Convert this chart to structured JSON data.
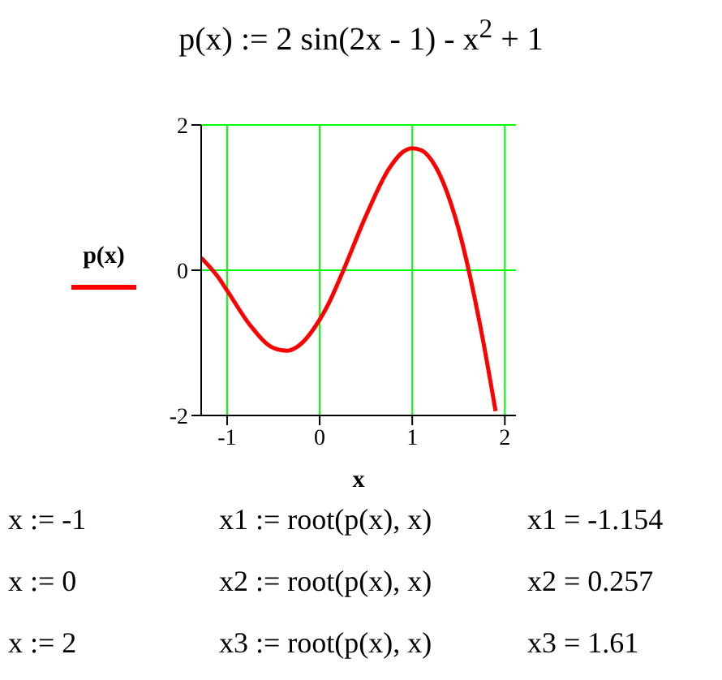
{
  "chart_data": {
    "type": "line",
    "title": "p(x) := 2 sin(2x - 1) - x$^{2}$ + 1",
    "xlabel": "x",
    "x": [
      -1.28,
      -1.1,
      -1,
      -0.75,
      -0.5,
      -0.35,
      -0.25,
      0,
      0.1,
      0.25,
      0.5,
      0.75,
      0.9,
      1,
      1.1,
      1.25,
      1.5,
      1.75,
      1.9
    ],
    "series": [
      {
        "name": "p(x)",
        "color": "#ff0000",
        "values": [
          0.17,
          -0.09,
          -0.28,
          -0.76,
          -1.07,
          -1.11,
          -1.06,
          -0.68,
          -0.45,
          -0.02,
          0.75,
          1.4,
          1.63,
          1.68,
          1.65,
          1.43,
          0.57,
          -0.87,
          -1.94
        ]
      }
    ],
    "xlim": [
      -1.28,
      2.12
    ],
    "xticks": [
      -1,
      0,
      1,
      2
    ],
    "ylim": [
      -2,
      2
    ],
    "yticks": [
      -2,
      0,
      2
    ],
    "grid": true,
    "legend": "left",
    "marker": "none",
    "line_style": "solid",
    "annotations": [
      "x := -1",
      "x1 := root(p(x), x)",
      "x1 = -1.154",
      "x := 0",
      "x2 := root(p(x), x)",
      "x2 = 0.257",
      "x := 2",
      "x3 := root(p(x), x)",
      "x3 = 1.61"
    ]
  }
}
